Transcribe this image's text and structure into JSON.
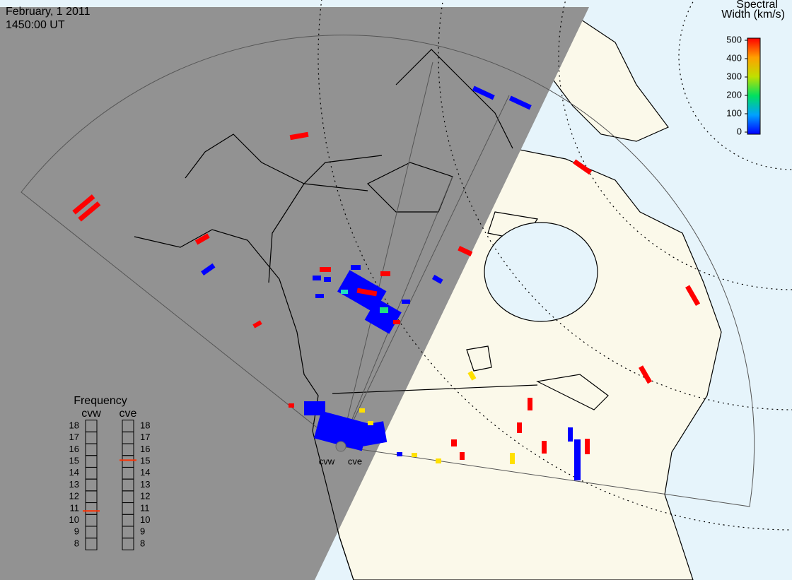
{
  "header": {
    "date": "February, 1 2011",
    "time": "1450:00 UT"
  },
  "colorbar": {
    "title": [
      "Spectral",
      "Width (km/s)"
    ],
    "range": [
      0,
      500
    ],
    "ticks": [
      0,
      100,
      200,
      300,
      400,
      500
    ]
  },
  "frequency": {
    "title": "Frequency",
    "range": [
      8,
      18
    ],
    "ticks": [
      8,
      9,
      10,
      11,
      12,
      13,
      14,
      15,
      16,
      17,
      18
    ],
    "radars": [
      {
        "name": "cvw",
        "value": 10.8
      },
      {
        "name": "cve",
        "value": 15.1
      }
    ]
  }
}
